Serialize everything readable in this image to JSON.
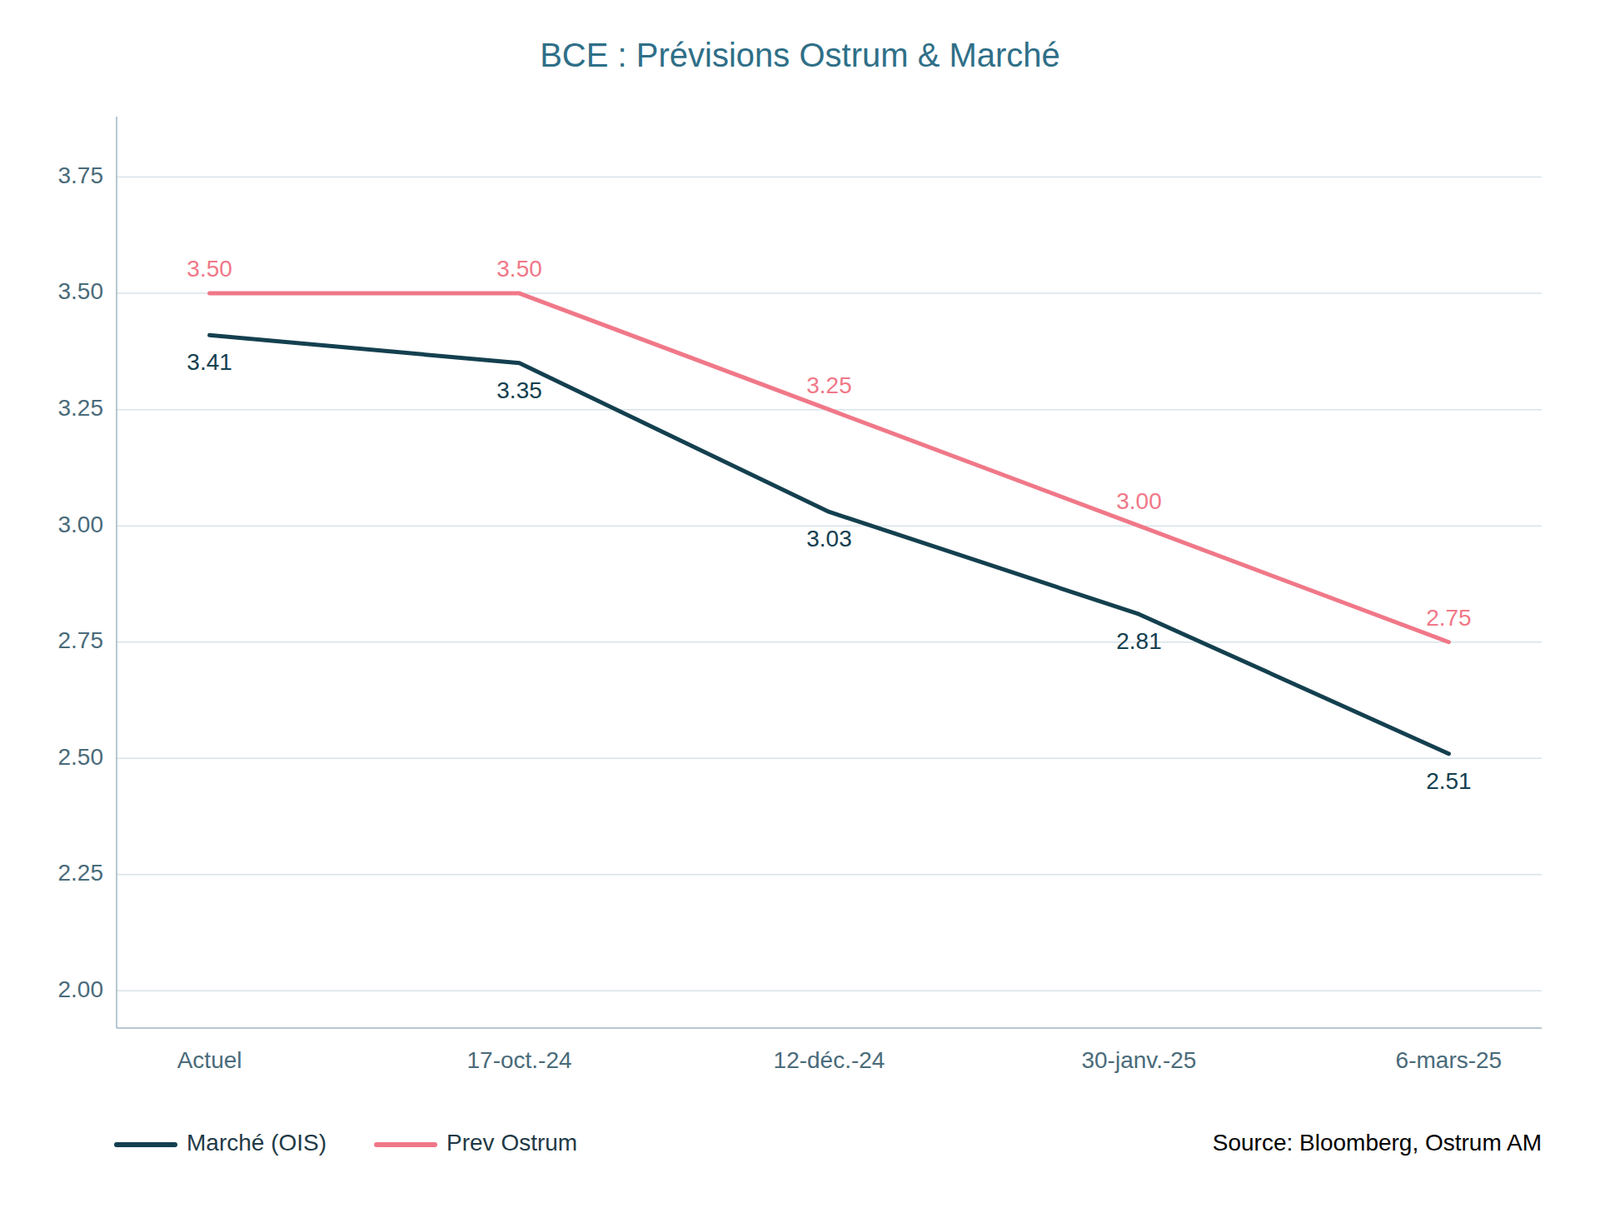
{
  "chart_data": {
    "type": "line",
    "title": "BCE : Prévisions Ostrum & Marché",
    "categories": [
      "Actuel",
      "17-oct.-24",
      "12-déc.-24",
      "30-janv.-25",
      "6-mars-25"
    ],
    "series": [
      {
        "name": "Marché (OIS)",
        "color": "#14404f",
        "values": [
          3.41,
          3.35,
          3.03,
          2.81,
          2.51
        ]
      },
      {
        "name": "Prev Ostrum",
        "color": "#f07888",
        "values": [
          3.5,
          3.5,
          3.25,
          3.0,
          2.75
        ],
        "value_labels": [
          "3.50",
          "3.50",
          "3.25",
          "3.00",
          "2.75"
        ]
      }
    ],
    "ylim": [
      1.92,
      3.88
    ],
    "yticks": [
      {
        "value": 2.0,
        "label": "2.00"
      },
      {
        "value": 2.25,
        "label": "2.25"
      },
      {
        "value": 2.5,
        "label": "2.50"
      },
      {
        "value": 2.75,
        "label": "2.75"
      },
      {
        "value": 3.0,
        "label": "3.00"
      },
      {
        "value": 3.25,
        "label": "3.25"
      },
      {
        "value": 3.5,
        "label": "3.50"
      },
      {
        "value": 3.75,
        "label": "3.75"
      }
    ],
    "grid": true,
    "legend": "bottom",
    "data_labels": true,
    "annotations": [
      "Source: Bloomberg, Ostrum AM"
    ]
  }
}
